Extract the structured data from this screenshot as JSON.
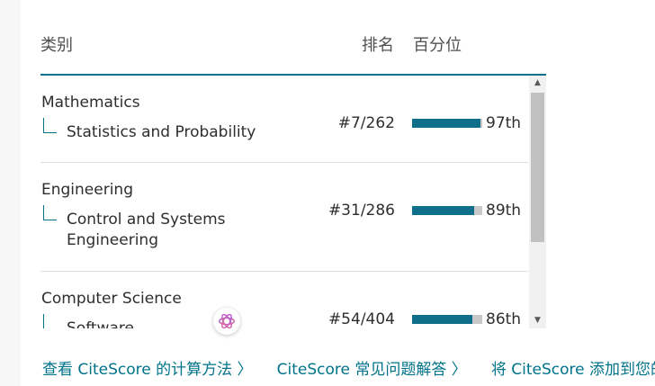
{
  "header": {
    "category_label": "类别",
    "rank_label": "排名",
    "percentile_label": "百分位"
  },
  "rows": [
    {
      "category": "Mathematics",
      "subcategory": "Statistics and Probability",
      "rank": "#7/262",
      "percentile_label": "97th",
      "percentile": 97
    },
    {
      "category": "Engineering",
      "subcategory": "Control and Systems Engineering",
      "rank": "#31/286",
      "percentile_label": "89th",
      "percentile": 89
    },
    {
      "category": "Computer Science",
      "subcategory": "Software",
      "rank": "#54/404",
      "percentile_label": "86th",
      "percentile": 86
    }
  ],
  "links": [
    "查看 CiteScore 的计算方法 〉",
    "CiteScore 常见问题解答 〉",
    "将 CiteScore 添加到您的"
  ],
  "colors": {
    "accent": "#00738a",
    "bar_fill": "#0f6e8a",
    "bar_track": "#c8c8c8"
  },
  "icons": {
    "ai_badge": "ai-assistant-icon",
    "scroll_up": "chevron-up-icon",
    "scroll_down": "chevron-down-icon"
  }
}
